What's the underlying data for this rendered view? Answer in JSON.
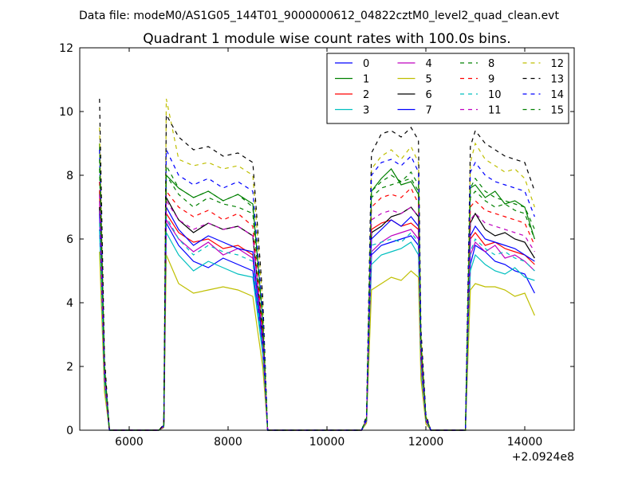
{
  "suptitle": "Data file: modeM0/AS1G05_144T01_9000000612_04822cztM0_level2_quad_clean.evt",
  "chart_data": {
    "type": "line",
    "title": "Quadrant 1 module wise count rates with 100.0s bins.",
    "xlabel": "",
    "ylabel": "",
    "x_offset_label": "+2.0924e8",
    "xlim": [
      5000,
      15000
    ],
    "ylim": [
      0,
      12
    ],
    "xticks": [
      6000,
      8000,
      10000,
      12000,
      14000
    ],
    "xtick_labels": [
      "6000",
      "8000",
      "10000",
      "12000",
      "14000"
    ],
    "yticks": [
      0,
      2,
      4,
      6,
      8,
      10,
      12
    ],
    "ytick_labels": [
      "0",
      "2",
      "4",
      "6",
      "8",
      "10",
      "12"
    ],
    "grid": false,
    "legend_position": "top-right",
    "x": [
      5400,
      5500,
      5600,
      6600,
      6700,
      6750,
      7000,
      7300,
      7600,
      7900,
      8200,
      8500,
      8700,
      8800,
      10700,
      10800,
      10900,
      11100,
      11300,
      11500,
      11700,
      11850,
      11900,
      12000,
      12100,
      12800,
      12900,
      13000,
      13200,
      13400,
      13600,
      13800,
      14000,
      14200
    ],
    "series": [
      {
        "name": "0",
        "color": "#0000ff",
        "dashed": false,
        "values": [
          7.0,
          1.5,
          0,
          0,
          0.1,
          6.5,
          5.8,
          5.3,
          5.1,
          5.4,
          5.2,
          5.0,
          2.5,
          0,
          0,
          0.3,
          5.5,
          5.8,
          5.9,
          6.0,
          6.1,
          5.8,
          2.0,
          0.3,
          0,
          0,
          5.2,
          5.8,
          5.6,
          5.3,
          5.2,
          5.0,
          4.9,
          4.3
        ]
      },
      {
        "name": "1",
        "color": "#008000",
        "dashed": false,
        "values": [
          9.0,
          2.0,
          0,
          0,
          0.15,
          8.0,
          7.6,
          7.3,
          7.5,
          7.2,
          7.4,
          7.1,
          3.5,
          0,
          0,
          0.35,
          7.5,
          7.9,
          8.2,
          7.7,
          7.8,
          7.4,
          2.7,
          0.4,
          0,
          0,
          7.6,
          7.7,
          7.3,
          7.5,
          7.1,
          7.2,
          7.0,
          6.0
        ]
      },
      {
        "name": "2",
        "color": "#ff0000",
        "dashed": false,
        "values": [
          7.5,
          1.7,
          0,
          0,
          0.12,
          6.8,
          6.2,
          5.9,
          6.0,
          5.7,
          5.8,
          5.5,
          2.8,
          0,
          0,
          0.3,
          6.3,
          6.5,
          6.6,
          6.4,
          6.5,
          6.3,
          2.3,
          0.3,
          0,
          0,
          6.0,
          6.2,
          5.8,
          5.9,
          5.7,
          5.6,
          5.5,
          5.2
        ]
      },
      {
        "name": "3",
        "color": "#00bfbf",
        "dashed": false,
        "values": [
          6.3,
          1.4,
          0,
          0,
          0.1,
          6.2,
          5.5,
          5.0,
          5.3,
          5.1,
          4.9,
          4.8,
          2.4,
          0,
          0,
          0.28,
          5.2,
          5.5,
          5.6,
          5.7,
          5.9,
          5.5,
          1.9,
          0.3,
          0,
          0,
          5.0,
          5.5,
          5.2,
          5.0,
          4.9,
          5.1,
          4.8,
          4.7
        ]
      },
      {
        "name": "4",
        "color": "#bf00bf",
        "dashed": false,
        "values": [
          7.2,
          1.6,
          0,
          0,
          0.11,
          6.6,
          6.0,
          5.6,
          5.9,
          5.5,
          5.7,
          5.4,
          2.6,
          0,
          0,
          0.3,
          5.6,
          5.9,
          6.1,
          6.2,
          6.3,
          6.0,
          2.1,
          0.3,
          0,
          0,
          5.5,
          5.9,
          5.6,
          5.8,
          5.4,
          5.5,
          5.3,
          5.0
        ]
      },
      {
        "name": "5",
        "color": "#bfbf00",
        "dashed": false,
        "values": [
          5.6,
          1.2,
          0,
          0,
          0.08,
          5.5,
          4.6,
          4.3,
          4.4,
          4.5,
          4.4,
          4.2,
          2.0,
          0,
          0,
          0.22,
          4.4,
          4.6,
          4.8,
          4.7,
          5.0,
          4.8,
          1.6,
          0.2,
          0,
          0,
          4.4,
          4.6,
          4.5,
          4.5,
          4.4,
          4.2,
          4.3,
          3.6
        ]
      },
      {
        "name": "6",
        "color": "#000000",
        "dashed": false,
        "values": [
          7.0,
          1.7,
          0,
          0,
          0.12,
          7.3,
          6.6,
          6.2,
          6.5,
          6.3,
          6.4,
          6.1,
          3.0,
          0,
          0,
          0.32,
          6.2,
          6.4,
          6.7,
          6.8,
          7.0,
          6.7,
          2.4,
          0.35,
          0,
          0,
          6.5,
          6.8,
          6.3,
          6.1,
          6.2,
          6.0,
          5.9,
          5.4
        ]
      },
      {
        "name": "7",
        "color": "#0000ff",
        "dashed": false,
        "values": [
          6.8,
          1.6,
          0,
          0,
          0.11,
          7.0,
          6.3,
          5.8,
          6.1,
          5.9,
          5.7,
          5.6,
          2.7,
          0,
          0,
          0.3,
          6.0,
          6.3,
          6.6,
          6.4,
          6.7,
          6.4,
          2.2,
          0.3,
          0,
          0,
          6.1,
          6.4,
          6.0,
          5.9,
          5.8,
          5.7,
          5.5,
          5.3
        ]
      },
      {
        "name": "8",
        "color": "#008000",
        "dashed": true,
        "values": [
          8.2,
          1.9,
          0,
          0,
          0.14,
          8.0,
          7.4,
          7.0,
          7.3,
          7.1,
          7.0,
          6.8,
          3.3,
          0,
          0,
          0.36,
          7.3,
          7.6,
          7.7,
          7.8,
          7.9,
          7.5,
          2.6,
          0.4,
          0,
          0,
          7.3,
          7.5,
          7.2,
          7.0,
          7.1,
          6.9,
          6.8,
          6.0
        ]
      },
      {
        "name": "9",
        "color": "#ff0000",
        "dashed": true,
        "values": [
          7.8,
          1.8,
          0,
          0,
          0.13,
          7.5,
          7.0,
          6.7,
          6.9,
          6.6,
          6.8,
          6.4,
          3.1,
          0,
          0,
          0.33,
          7.0,
          7.3,
          7.4,
          7.3,
          7.6,
          7.1,
          2.5,
          0.35,
          0,
          0,
          7.0,
          7.2,
          6.9,
          6.8,
          6.7,
          6.6,
          6.5,
          5.8
        ]
      },
      {
        "name": "10",
        "color": "#00bfbf",
        "dashed": true,
        "values": [
          6.5,
          1.5,
          0,
          0,
          0.1,
          6.7,
          6.0,
          5.5,
          5.8,
          5.6,
          5.5,
          5.3,
          2.5,
          0,
          0,
          0.28,
          5.8,
          5.9,
          6.0,
          5.9,
          6.2,
          5.9,
          2.0,
          0.3,
          0,
          0,
          5.6,
          6.0,
          5.7,
          5.5,
          5.6,
          5.4,
          5.3,
          5.0
        ]
      },
      {
        "name": "11",
        "color": "#bf00bf",
        "dashed": true,
        "values": [
          7.4,
          1.7,
          0,
          0,
          0.12,
          7.2,
          6.6,
          6.3,
          6.5,
          6.3,
          6.4,
          6.1,
          2.9,
          0,
          0,
          0.31,
          6.6,
          6.8,
          6.9,
          6.8,
          7.0,
          6.7,
          2.3,
          0.33,
          0,
          0,
          6.6,
          6.8,
          6.5,
          6.4,
          6.3,
          6.2,
          6.1,
          5.6
        ]
      },
      {
        "name": "12",
        "color": "#bfbf00",
        "dashed": true,
        "values": [
          9.5,
          2.1,
          0,
          0,
          0.16,
          10.4,
          8.5,
          8.3,
          8.4,
          8.2,
          8.3,
          8.0,
          4.0,
          0,
          0,
          0.4,
          8.2,
          8.6,
          8.8,
          8.5,
          8.9,
          8.4,
          3.0,
          0.45,
          0,
          0,
          8.4,
          9.0,
          8.5,
          8.3,
          8.1,
          8.2,
          7.9,
          7.0
        ]
      },
      {
        "name": "13",
        "color": "#000000",
        "dashed": true,
        "values": [
          10.4,
          2.3,
          0,
          0,
          0.18,
          9.9,
          9.2,
          8.8,
          8.9,
          8.6,
          8.7,
          8.4,
          4.2,
          0,
          0,
          0.45,
          8.7,
          9.3,
          9.4,
          9.2,
          9.5,
          9.1,
          3.2,
          0.5,
          0,
          0,
          8.9,
          9.4,
          9.0,
          8.8,
          8.6,
          8.5,
          8.4,
          7.5
        ]
      },
      {
        "name": "14",
        "color": "#0000ff",
        "dashed": true,
        "values": [
          8.8,
          2.0,
          0,
          0,
          0.15,
          8.8,
          8.0,
          7.7,
          7.9,
          7.6,
          7.8,
          7.5,
          3.7,
          0,
          0,
          0.38,
          8.0,
          8.4,
          8.5,
          8.3,
          8.6,
          8.1,
          2.8,
          0.42,
          0,
          0,
          8.1,
          8.4,
          8.0,
          7.8,
          7.7,
          7.6,
          7.5,
          6.7
        ]
      },
      {
        "name": "15",
        "color": "#008000",
        "dashed": true,
        "values": [
          8.5,
          1.9,
          0,
          0,
          0.14,
          8.3,
          7.6,
          7.3,
          7.5,
          7.2,
          7.4,
          7.0,
          3.5,
          0,
          0,
          0.37,
          7.5,
          7.8,
          8.0,
          7.8,
          8.1,
          7.7,
          2.7,
          0.4,
          0,
          0,
          7.6,
          7.9,
          7.5,
          7.3,
          7.2,
          7.1,
          7.0,
          6.3
        ]
      }
    ]
  }
}
